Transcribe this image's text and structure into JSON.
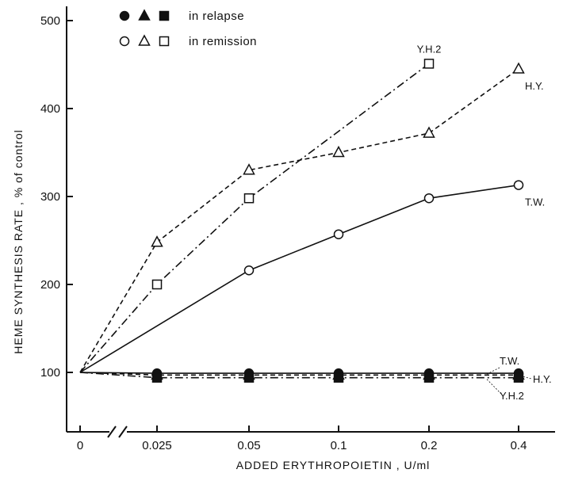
{
  "chart_data": {
    "type": "line",
    "xlabel": "ADDED ERYTHROPOIETIN ,   U/ml",
    "ylabel": "HEME SYNTHESIS RATE ,  % of control",
    "x_ticks": [
      "0",
      "0.025",
      "0.05",
      "0.1",
      "0.2",
      "0.4"
    ],
    "y_ticks": [
      100,
      200,
      300,
      400,
      500
    ],
    "ylim": [
      60,
      520
    ],
    "x_axis_break": true,
    "grid": false,
    "legend": {
      "position": "top-left",
      "entries": [
        {
          "label": "in relapse",
          "filled": true
        },
        {
          "label": "in remission",
          "filled": false
        }
      ]
    },
    "series": [
      {
        "name": "Y.H.2",
        "state": "remission",
        "marker": "square",
        "filled": false,
        "linestyle": "dashdot",
        "x": [
          "0",
          "0.025",
          "0.05",
          "0.2"
        ],
        "y": [
          100,
          200,
          298,
          451
        ],
        "label_pos": "top"
      },
      {
        "name": "H.Y.",
        "state": "remission",
        "marker": "triangle",
        "filled": false,
        "linestyle": "dashed",
        "x": [
          "0",
          "0.025",
          "0.05",
          "0.1",
          "0.2",
          "0.4"
        ],
        "y": [
          100,
          248,
          330,
          350,
          372,
          445
        ],
        "label_pos": "right"
      },
      {
        "name": "T.W.",
        "state": "remission",
        "marker": "circle",
        "filled": false,
        "linestyle": "solid",
        "x": [
          "0",
          "0.025",
          "0.05",
          "0.1",
          "0.2",
          "0.4"
        ],
        "y": [
          100,
          null,
          216,
          257,
          298,
          313
        ],
        "label_pos": "right"
      },
      {
        "name": "T.W.",
        "state": "relapse",
        "marker": "circle",
        "filled": true,
        "linestyle": "solid",
        "x": [
          "0",
          "0.025",
          "0.05",
          "0.1",
          "0.2",
          "0.4"
        ],
        "y": [
          100,
          99,
          99,
          99,
          99,
          99
        ],
        "label_pos": "leader-up"
      },
      {
        "name": "H.Y.",
        "state": "relapse",
        "marker": "triangle",
        "filled": true,
        "linestyle": "dashed",
        "x": [
          "0",
          "0.025",
          "0.05",
          "0.1",
          "0.2",
          "0.4"
        ],
        "y": [
          100,
          97,
          97,
          97,
          97,
          97
        ],
        "label_pos": "leader-right"
      },
      {
        "name": "Y.H.2",
        "state": "relapse",
        "marker": "square",
        "filled": true,
        "linestyle": "dashdot",
        "x": [
          "0",
          "0.025",
          "0.05",
          "0.1",
          "0.2",
          "0.4"
        ],
        "y": [
          100,
          94,
          94,
          94,
          94,
          94
        ],
        "label_pos": "leader-down"
      }
    ]
  }
}
